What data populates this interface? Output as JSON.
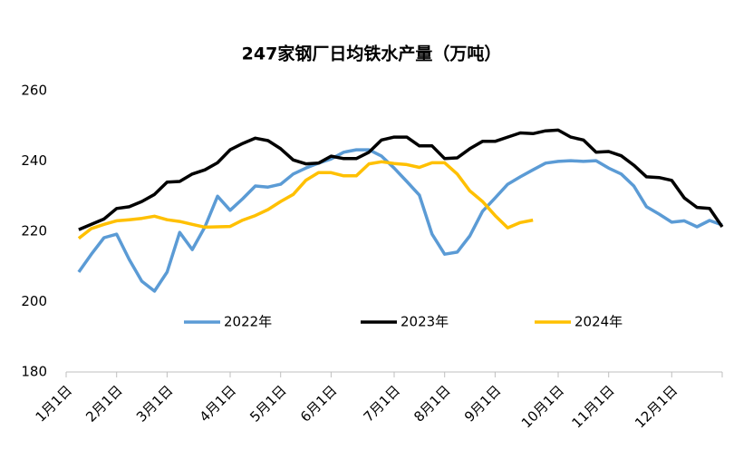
{
  "chart_data": {
    "type": "line",
    "title": "247家钢厂日均铁水产量（万吨）",
    "categories": [
      "1月1日",
      null,
      null,
      null,
      "2月1日",
      null,
      null,
      null,
      "3月1日",
      null,
      null,
      null,
      null,
      "4月1日",
      null,
      null,
      null,
      "5月1日",
      null,
      null,
      null,
      "6月1日",
      null,
      null,
      null,
      null,
      "7月1日",
      null,
      null,
      null,
      "8月1日",
      null,
      null,
      null,
      "9月1日",
      null,
      null,
      null,
      null,
      "10月1日",
      null,
      null,
      null,
      "11月1日",
      null,
      null,
      null,
      null,
      "12月1日",
      null,
      null,
      null,
      null
    ],
    "series": [
      {
        "name": "2022年",
        "color": "#5b9bd5",
        "values": [
          null,
          208.4,
          213.5,
          218.2,
          219.2,
          212,
          205.8,
          203,
          208.4,
          219.7,
          214.8,
          221.3,
          230,
          226,
          229.3,
          232.9,
          232.6,
          233.4,
          236.3,
          238,
          239.4,
          240.6,
          242.5,
          243.2,
          243.2,
          241.4,
          238,
          234.2,
          230.3,
          219.2,
          213.5,
          214.1,
          218.7,
          225.7,
          229.5,
          233.4,
          235.5,
          237.5,
          239.4,
          239.9,
          240.1,
          239.9,
          240.1,
          238,
          236.3,
          232.9,
          227,
          224.9,
          222.6,
          223,
          221.3,
          223.1,
          221.8
        ]
      },
      {
        "name": "2023年",
        "color": "#000000",
        "values": [
          null,
          220.5,
          222,
          223.5,
          226.5,
          227,
          228.5,
          230.5,
          234,
          234.2,
          236.3,
          237.5,
          239.5,
          243.2,
          245,
          246.5,
          245.8,
          243.5,
          240.3,
          239.2,
          239.4,
          241.4,
          240.7,
          240.7,
          242.5,
          246,
          246.8,
          246.8,
          244.3,
          244.3,
          240.7,
          240.9,
          243.5,
          245.6,
          245.6,
          246.8,
          248,
          247.8,
          248.6,
          248.8,
          246.8,
          246,
          242.5,
          242.7,
          241.5,
          238.8,
          235.5,
          235.3,
          234.5,
          229.5,
          226.8,
          226.5,
          221.3
        ]
      },
      {
        "name": "2024年",
        "color": "#ffc000",
        "values": [
          null,
          218,
          220.8,
          222,
          223,
          223.3,
          223.7,
          224.3,
          223.3,
          222.8,
          222,
          221.2,
          221.3,
          221.4,
          223.2,
          224.5,
          226.2,
          228.5,
          230.5,
          234.5,
          236.7,
          236.7,
          235.8,
          235.8,
          239.2,
          239.8,
          239.3,
          239,
          238.2,
          239.5,
          239.5,
          236.3,
          231.5,
          228.5,
          224.5,
          221,
          222.5,
          223.2,
          null,
          null,
          null,
          null,
          null,
          null,
          null,
          null,
          null,
          null,
          null,
          null,
          null,
          null,
          null
        ]
      }
    ],
    "ylim": [
      180,
      260
    ],
    "yticks": [
      180,
      200,
      220,
      240,
      260
    ],
    "grid": false
  }
}
